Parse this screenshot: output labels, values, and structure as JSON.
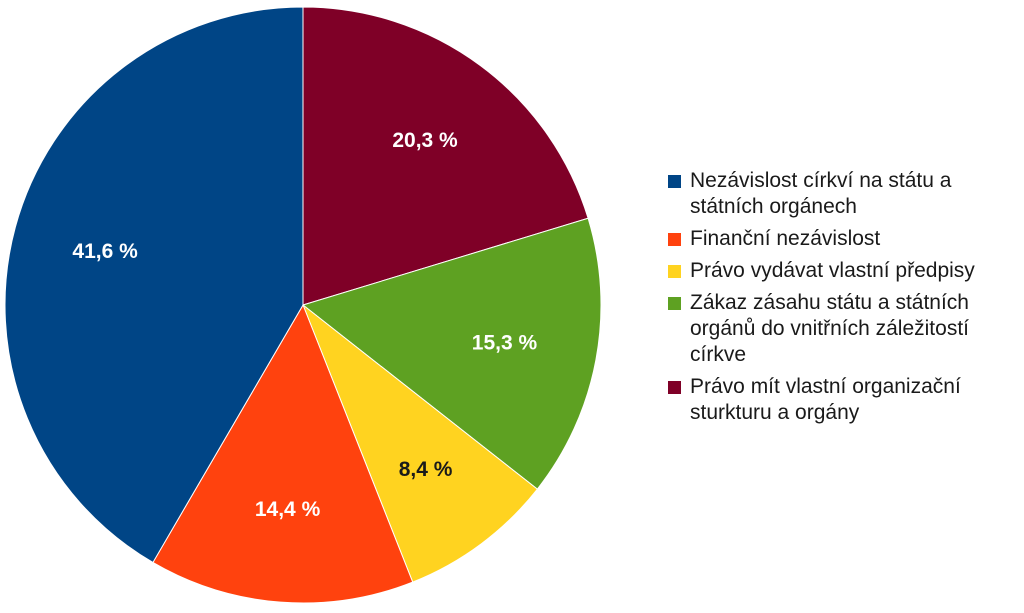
{
  "chart_data": {
    "type": "pie",
    "title": "",
    "start_angle_deg": 0,
    "direction": "clockwise",
    "legend_position": "right",
    "slices": [
      {
        "label": "Právo mít vlastní organizační sturkturu a orgány",
        "value": 20.3,
        "display": "20,3 %",
        "color": "#7f0027",
        "label_color": "#ffffff"
      },
      {
        "label": "Zákaz zásahu státu a státních orgánů do vnitřních záležitostí církve",
        "value": 15.3,
        "display": "15,3 %",
        "color": "#5ea122",
        "label_color": "#ffffff"
      },
      {
        "label": "Právo vydávat vlastní předpisy",
        "value": 8.4,
        "display": "8,4 %",
        "color": "#ffd320",
        "label_color": "#1a1a1a"
      },
      {
        "label": "Finanční nezávislost",
        "value": 14.4,
        "display": "14,4 %",
        "color": "#ff420e",
        "label_color": "#ffffff"
      },
      {
        "label": "Nezávislost církví na státu a státních orgánech",
        "value": 41.6,
        "display": "41,6 %",
        "color": "#004586",
        "label_color": "#ffffff"
      }
    ],
    "legend": [
      {
        "lines": [
          "Nezávislost církví na státu a",
          "státních orgánech"
        ],
        "color": "#004586"
      },
      {
        "lines": [
          "Finanční nezávislost"
        ],
        "color": "#ff420e"
      },
      {
        "lines": [
          "Právo vydávat vlastní předpisy"
        ],
        "color": "#ffd320"
      },
      {
        "lines": [
          "Zákaz zásahu státu a státních",
          "orgánů do vnitřních záležitostí",
          "církve"
        ],
        "color": "#5ea122"
      },
      {
        "lines": [
          "Právo mít vlastní organizační",
          "sturkturu a orgány"
        ],
        "color": "#7f0027"
      }
    ]
  }
}
